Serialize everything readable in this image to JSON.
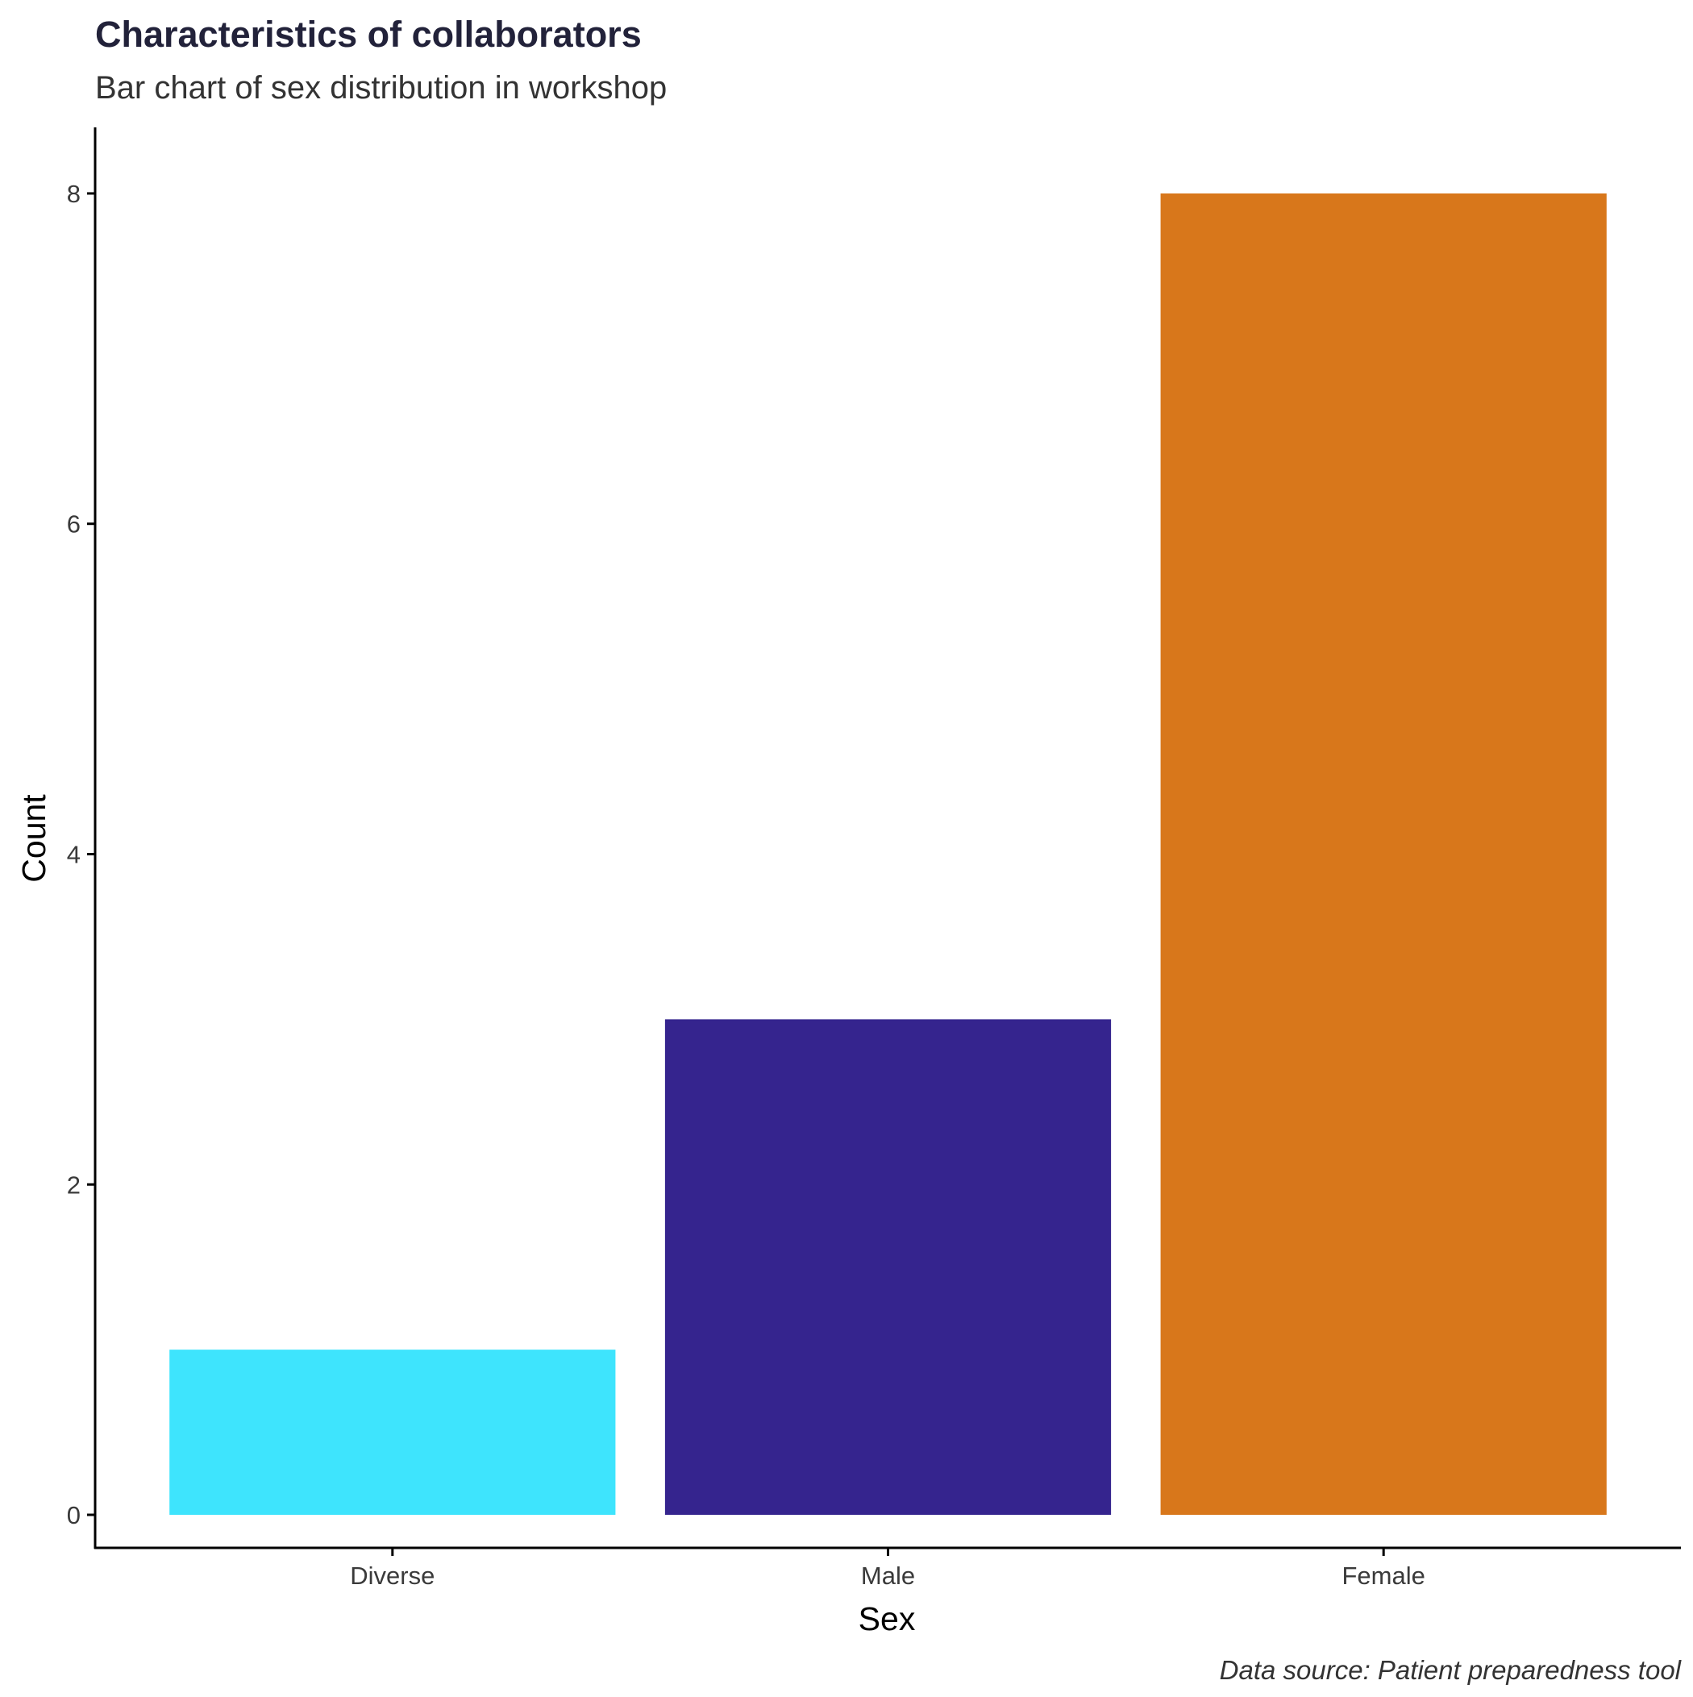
{
  "chart_data": {
    "type": "bar",
    "title": "Characteristics of collaborators",
    "subtitle": "Bar chart of sex distribution in workshop",
    "xlabel": "Sex",
    "ylabel": "Count",
    "caption": "Data source: Patient preparedness tool",
    "categories": [
      "Diverse",
      "Male",
      "Female"
    ],
    "values": [
      1,
      3,
      8
    ],
    "colors": [
      "#3ee4fd",
      "#35248e",
      "#d8771b"
    ],
    "ylim": [
      -0.2,
      8.4
    ],
    "yticks": [
      0,
      2,
      4,
      6,
      8
    ],
    "grid": false,
    "legend": "none"
  }
}
